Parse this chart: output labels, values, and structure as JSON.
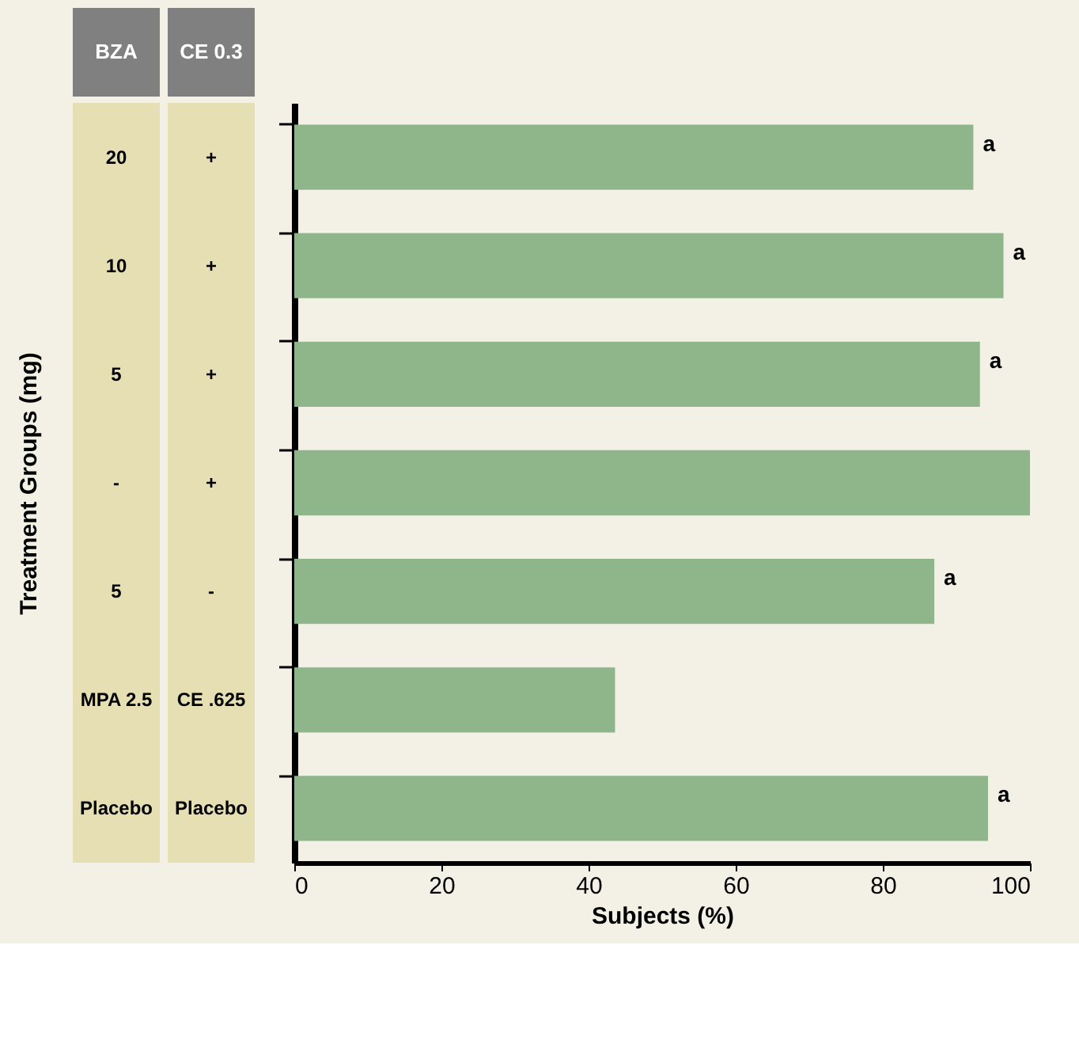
{
  "chart_data": {
    "type": "bar",
    "orientation": "horizontal",
    "xlabel": "Subjects (%)",
    "ylabel": "Treatment Groups (mg)",
    "categories": [
      "20",
      "10",
      "5",
      "-",
      "5",
      "MPA 2.5",
      "Placebo"
    ],
    "y2_categories": [
      "+",
      "+",
      "+",
      "+",
      "-",
      "CE .625",
      "Placebo"
    ],
    "annotations": [
      "BZA",
      "CE 0.3"
    ],
    "values": [
      92.3,
      96.4,
      93.2,
      100,
      87.0,
      43.6,
      94.3
    ],
    "value_labels": [
      "a",
      "a",
      "a",
      null,
      "a",
      null,
      "a"
    ],
    "color": "#8fb58a",
    "xlim": [
      0,
      100
    ],
    "xticks": [
      0,
      20,
      40,
      60,
      80,
      100
    ],
    "grid": false
  }
}
